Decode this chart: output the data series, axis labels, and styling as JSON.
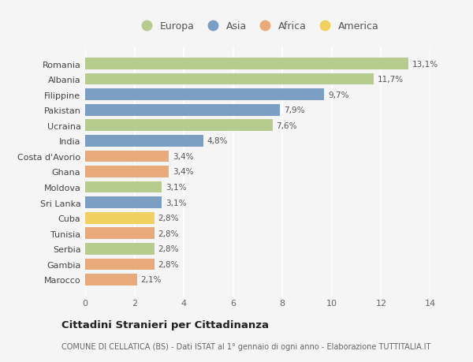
{
  "countries": [
    "Romania",
    "Albania",
    "Filippine",
    "Pakistan",
    "Ucraina",
    "India",
    "Costa d'Avorio",
    "Ghana",
    "Moldova",
    "Sri Lanka",
    "Cuba",
    "Tunisia",
    "Serbia",
    "Gambia",
    "Marocco"
  ],
  "values": [
    13.1,
    11.7,
    9.7,
    7.9,
    7.6,
    4.8,
    3.4,
    3.4,
    3.1,
    3.1,
    2.8,
    2.8,
    2.8,
    2.8,
    2.1
  ],
  "labels": [
    "13,1%",
    "11,7%",
    "9,7%",
    "7,9%",
    "7,6%",
    "4,8%",
    "3,4%",
    "3,4%",
    "3,1%",
    "3,1%",
    "2,8%",
    "2,8%",
    "2,8%",
    "2,8%",
    "2,1%"
  ],
  "continents": [
    "Europa",
    "Europa",
    "Asia",
    "Asia",
    "Europa",
    "Asia",
    "Africa",
    "Africa",
    "Europa",
    "Asia",
    "America",
    "Africa",
    "Europa",
    "Africa",
    "Africa"
  ],
  "colors": {
    "Europa": "#b5cc8e",
    "Asia": "#7b9fc2",
    "Africa": "#e8aa7a",
    "America": "#f0d060"
  },
  "xlim": [
    0,
    14
  ],
  "xticks": [
    0,
    2,
    4,
    6,
    8,
    10,
    12,
    14
  ],
  "title": "Cittadini Stranieri per Cittadinanza",
  "subtitle": "COMUNE DI CELLATICA (BS) - Dati ISTAT al 1° gennaio di ogni anno - Elaborazione TUTTITALIA.IT",
  "background_color": "#f5f5f5",
  "grid_color": "#ffffff",
  "bar_height": 0.75,
  "legend_entries": [
    "Europa",
    "Asia",
    "Africa",
    "America"
  ]
}
